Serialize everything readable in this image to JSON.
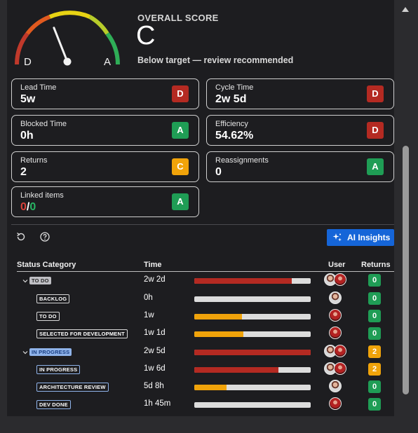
{
  "score": {
    "title": "OVERALL SCORE",
    "grade": "C",
    "subtitle": "Below target — review recommended",
    "gauge_low": "D",
    "gauge_high": "A",
    "level": 0.38
  },
  "metrics": [
    {
      "label": "Lead Time",
      "value": "5w",
      "grade": "D",
      "color": "#b42a22"
    },
    {
      "label": "Cycle Time",
      "value": "2w 5d",
      "grade": "D",
      "color": "#b42a22"
    },
    {
      "label": "Blocked Time",
      "value": "0h",
      "grade": "A",
      "color": "#1f9d55"
    },
    {
      "label": "Efficiency",
      "value": "54.62%",
      "grade": "D",
      "color": "#b42a22"
    },
    {
      "label": "Returns",
      "value": "2",
      "grade": "C",
      "color": "#f0a30a"
    },
    {
      "label": "Reassignments",
      "value": "0",
      "grade": "A",
      "color": "#1f9d55"
    },
    {
      "label": "Linked items",
      "value_red": "0",
      "value_sep": "/",
      "value_green": "0",
      "grade": "A",
      "color": "#1f9d55"
    }
  ],
  "toolbar": {
    "refresh_icon": "refresh-icon",
    "help_icon": "help-icon",
    "ai_label": "AI Insights"
  },
  "table": {
    "headers": {
      "status": "Status Category",
      "time": "Time",
      "user": "User",
      "returns": "Returns"
    },
    "rows": [
      {
        "label": "TO DO",
        "group": true,
        "style": "gray",
        "time": "2w 2d",
        "fill": 0.84,
        "fill_color": "#b42a22",
        "users": 2,
        "returns": "0",
        "returns_color": "#1f9d55"
      },
      {
        "label": "BACKLOG",
        "group": false,
        "style": "outline",
        "time": "0h",
        "fill": 0,
        "fill_color": "#b42a22",
        "users": 1,
        "returns": "0",
        "returns_color": "#1f9d55"
      },
      {
        "label": "TO DO",
        "group": false,
        "style": "outline",
        "time": "1w",
        "fill": 0.41,
        "fill_color": "#f0a30a",
        "users": 1,
        "returns": "0",
        "returns_color": "#1f9d55"
      },
      {
        "label": "SELECTED FOR DEVELOPMENT",
        "group": false,
        "style": "outline",
        "time": "1w 1d",
        "fill": 0.42,
        "fill_color": "#f0a30a",
        "users": 1,
        "returns": "0",
        "returns_color": "#1f9d55"
      },
      {
        "label": "IN PROGRESS",
        "group": true,
        "style": "blue",
        "time": "2w 5d",
        "fill": 1.0,
        "fill_color": "#b42a22",
        "users": 2,
        "returns": "2",
        "returns_color": "#f0a30a"
      },
      {
        "label": "IN PROGRESS",
        "group": false,
        "style": "outline-blue",
        "time": "1w 6d",
        "fill": 0.72,
        "fill_color": "#b42a22",
        "users": 2,
        "returns": "2",
        "returns_color": "#f0a30a"
      },
      {
        "label": "ARCHITECTURE REVIEW",
        "group": false,
        "style": "outline-blue",
        "time": "5d 8h",
        "fill": 0.28,
        "fill_color": "#f0a30a",
        "users": 1,
        "returns": "0",
        "returns_color": "#1f9d55"
      },
      {
        "label": "DEV DONE",
        "group": false,
        "style": "outline-blue",
        "time": "1h 45m",
        "fill": 0,
        "fill_color": "#b42a22",
        "users": 1,
        "returns": "0",
        "returns_color": "#1f9d55"
      }
    ]
  }
}
